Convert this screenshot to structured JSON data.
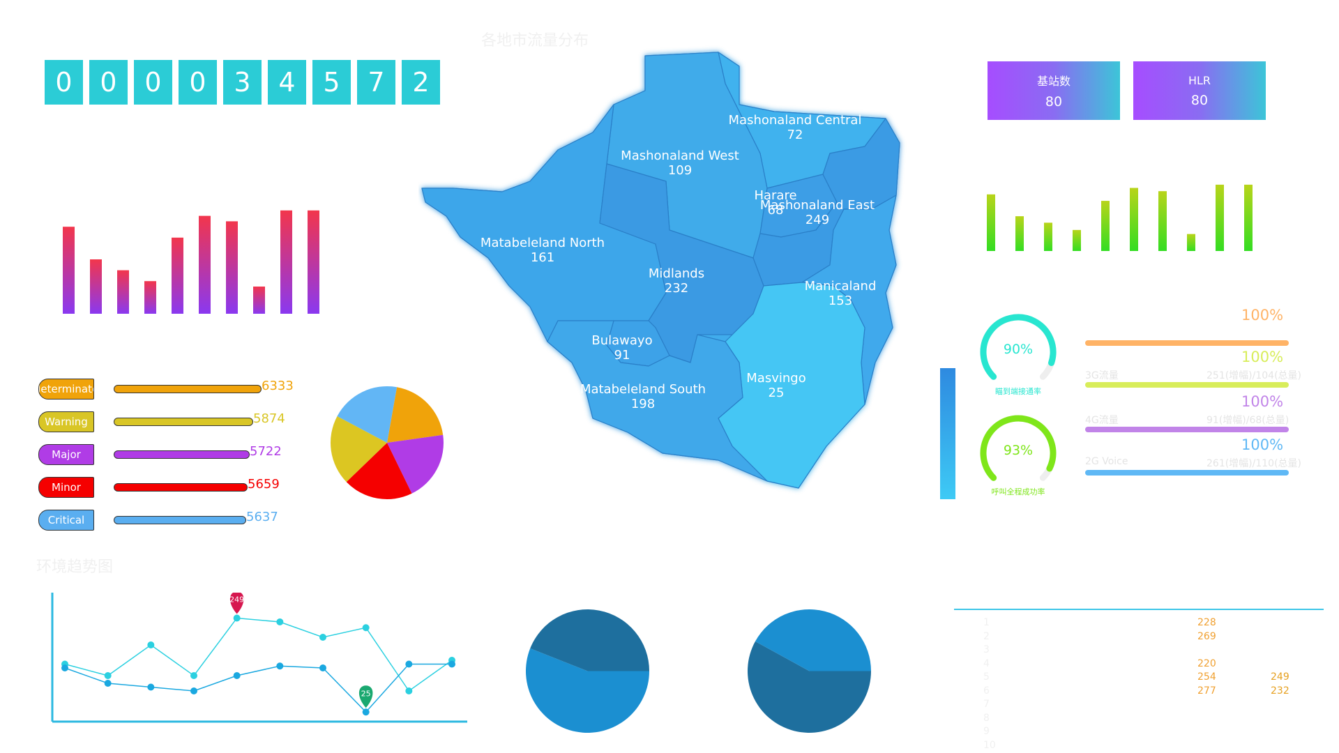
{
  "map": {
    "title": "各地市流量分布",
    "regions": [
      {
        "name": "Mashonaland Central",
        "value": "72"
      },
      {
        "name": "Mashonaland West",
        "value": "109"
      },
      {
        "name": "Harare",
        "value": "68"
      },
      {
        "name": "Mashonaland East",
        "value": "249"
      },
      {
        "name": "Matabeleland North",
        "value": "161"
      },
      {
        "name": "Midlands",
        "value": "232"
      },
      {
        "name": "Manicaland",
        "value": "153"
      },
      {
        "name": "Bulawayo",
        "value": "91"
      },
      {
        "name": "Masvingo",
        "value": "25"
      },
      {
        "name": "Matabeleland South",
        "value": "198"
      }
    ]
  },
  "counter": {
    "digits": [
      "0",
      "0",
      "0",
      "0",
      "3",
      "4",
      "5",
      "7",
      "2"
    ]
  },
  "stats": [
    {
      "title": "基站数",
      "value": "80"
    },
    {
      "title": "HLR",
      "value": "80"
    }
  ],
  "severity": {
    "items": [
      {
        "label": "determinate",
        "value": "6333",
        "color": "#f0a30a"
      },
      {
        "label": "Warning",
        "value": "5874",
        "color": "#d9c626"
      },
      {
        "label": "Major",
        "value": "5722",
        "color": "#b03ce6"
      },
      {
        "label": "Minor",
        "value": "5659",
        "color": "#f50000"
      },
      {
        "label": "Critical",
        "value": "5637",
        "color": "#5aaef0"
      }
    ]
  },
  "gauges": [
    {
      "percent": "90%",
      "caption": "瞄到端接通率",
      "color": "#28e6d0",
      "fraction": 0.9
    },
    {
      "percent": "93%",
      "caption": "呼叫全程成功率",
      "color": "#7fe61a",
      "fraction": 0.93
    }
  ],
  "progress": [
    {
      "percent": "100%",
      "color": "#ffb366",
      "label": "",
      "sub": ""
    },
    {
      "percent": "100%",
      "color": "#d8ed5a",
      "label": "3G流量",
      "sub": "251(增幅)/104(总量)"
    },
    {
      "percent": "100%",
      "color": "#c184e8",
      "label": "4G流量",
      "sub": "91(增幅)/68(总量)"
    },
    {
      "percent": "100%",
      "color": "#5fb8f5",
      "label": "2G Voice",
      "sub": "261(增幅)/110(总量)"
    }
  ],
  "line_chart": {
    "title": "环境趋势图",
    "pin_high": "249",
    "pin_low": "25"
  },
  "table": {
    "rows": [
      {
        "idx": "1",
        "a": "228",
        "b": ""
      },
      {
        "idx": "2",
        "a": "269",
        "b": ""
      },
      {
        "idx": "3",
        "a": "",
        "b": ""
      },
      {
        "idx": "4",
        "a": "220",
        "b": ""
      },
      {
        "idx": "5",
        "a": "254",
        "b": "249"
      },
      {
        "idx": "6",
        "a": "277",
        "b": "232"
      },
      {
        "idx": "7",
        "a": "",
        "b": ""
      },
      {
        "idx": "8",
        "a": "",
        "b": ""
      },
      {
        "idx": "9",
        "a": "",
        "b": ""
      },
      {
        "idx": "10",
        "a": "",
        "b": ""
      }
    ]
  },
  "chart_data": [
    {
      "type": "bar",
      "values": [
        80,
        50,
        40,
        30,
        70,
        90,
        85,
        25,
        95,
        95
      ],
      "ylim": [
        0,
        100
      ],
      "colors": {
        "top": "#f2364c",
        "bottom": "#8a38f0"
      }
    },
    {
      "type": "bar",
      "values": [
        70,
        43,
        35,
        26,
        62,
        78,
        74,
        21,
        82,
        82
      ],
      "ylim": [
        0,
        100
      ],
      "colors": {
        "top": "#b8d41a",
        "bottom": "#33dd22"
      }
    },
    {
      "type": "pie",
      "values": [
        20,
        20,
        20,
        20,
        20
      ],
      "colors": [
        "#f0a30a",
        "#b03ce6",
        "#f50000",
        "#dcc622",
        "#62b6f5"
      ],
      "labels": [
        "",
        "",
        "",
        "",
        ""
      ]
    },
    {
      "type": "line",
      "x": [
        "1",
        "2",
        "3",
        "4",
        "5",
        "6",
        "7",
        "8",
        "9",
        "10"
      ],
      "series": [
        {
          "values": [
            150,
            120,
            200,
            120,
            270,
            260,
            220,
            245,
            80,
            160
          ],
          "color": "#2bd0e0"
        },
        {
          "values": [
            140,
            100,
            90,
            80,
            120,
            145,
            140,
            25,
            150,
            150
          ],
          "color": "#1aa8e0"
        }
      ],
      "ylim": [
        0,
        300
      ]
    },
    {
      "type": "pie",
      "values": [
        56,
        44
      ],
      "colors": [
        "#1b8fd1",
        "#1e6f9e"
      ],
      "labels": [
        "",
        ""
      ]
    },
    {
      "type": "pie",
      "values": [
        58,
        42
      ],
      "colors": [
        "#1e6f9e",
        "#1b8fd1"
      ],
      "labels": [
        "",
        ""
      ]
    }
  ]
}
